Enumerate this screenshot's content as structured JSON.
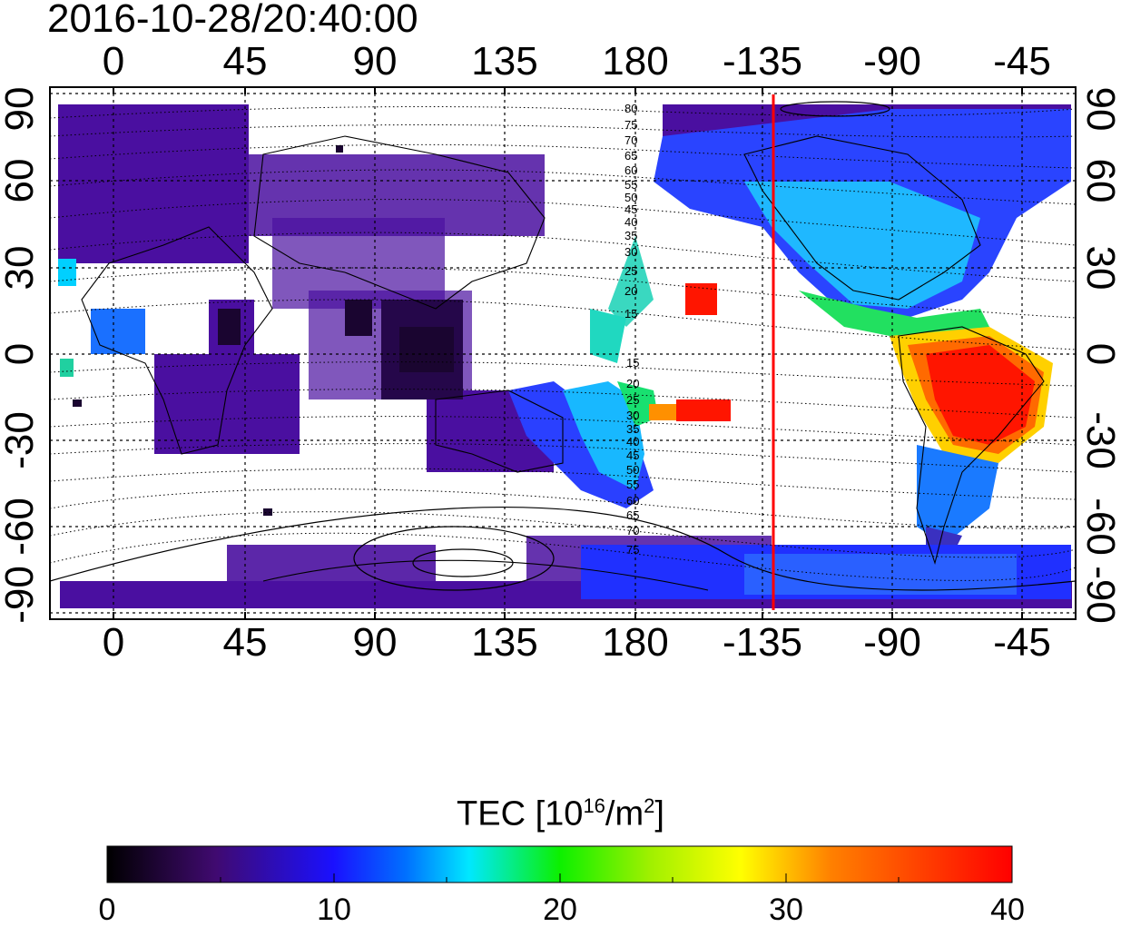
{
  "title": "2016-10-28/20:40:00",
  "map": {
    "top_longitude_ticks": [
      "0",
      "45",
      "90",
      "135",
      "180",
      "-135",
      "-90",
      "-45"
    ],
    "bottom_longitude_ticks": [
      "0",
      "45",
      "90",
      "135",
      "180",
      "-135",
      "-90",
      "-45"
    ],
    "left_latitude_ticks": [
      "90",
      "60",
      "30",
      "0",
      "-30",
      "-60",
      "-90"
    ],
    "right_latitude_ticks": [
      "90",
      "60",
      "30",
      "0",
      "-30",
      "-60",
      "-90"
    ],
    "contour_labels_north": [
      "80",
      "75",
      "70",
      "65",
      "60",
      "55",
      "50",
      "45",
      "40",
      "35",
      "30",
      "25",
      "20",
      "15"
    ],
    "contour_labels_south": [
      "15",
      "20",
      "25",
      "30",
      "35",
      "40",
      "45",
      "50",
      "55",
      "60",
      "65",
      "70",
      "75"
    ],
    "marker_line_longitude": -136,
    "marker_line_color": "#ff0000"
  },
  "colorbar": {
    "label_prefix": "TEC  [10",
    "label_sup": "16",
    "label_mid": "/m",
    "label_sup2": "2",
    "label_suffix": "]",
    "range": [
      0,
      40
    ],
    "ticks": [
      "0",
      "10",
      "20",
      "30",
      "40"
    ]
  },
  "colors": {
    "background_tec": "#4a0fa0",
    "low": "#000000",
    "blue": "#1a2cff",
    "cyan": "#00e8ff",
    "green": "#16e000",
    "yellow": "#ffff00",
    "red": "#ff0000"
  }
}
